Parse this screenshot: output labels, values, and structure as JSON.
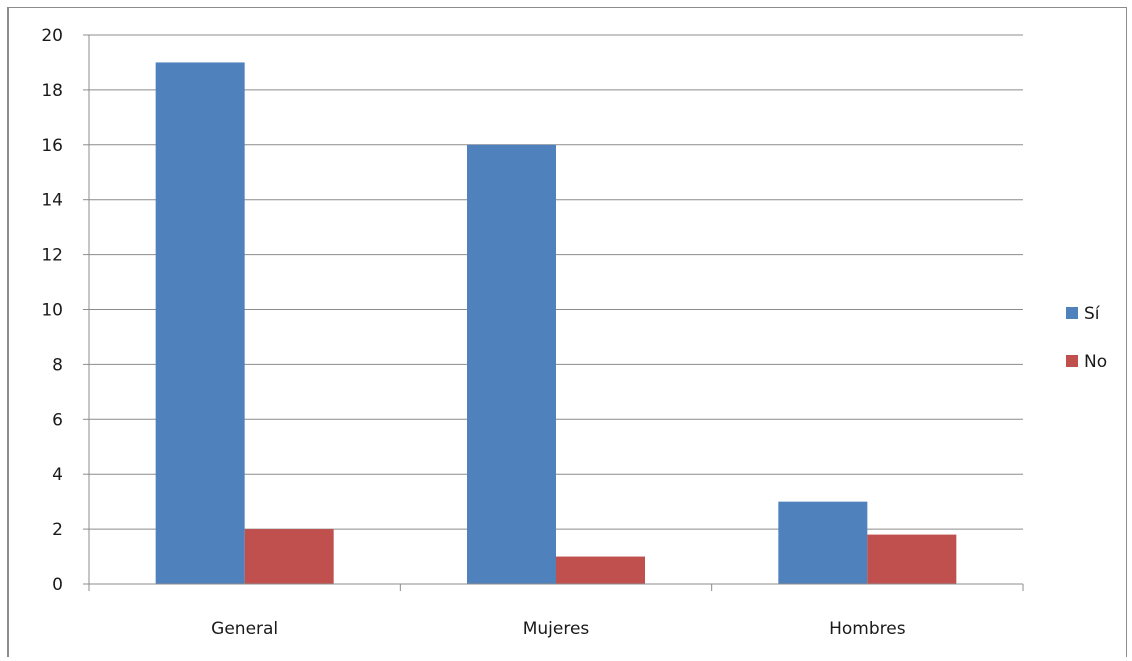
{
  "caption": "",
  "chart_data": {
    "type": "bar",
    "title": "",
    "xlabel": "",
    "ylabel": "",
    "categories": [
      "General",
      "Mujeres",
      "Hombres"
    ],
    "series": [
      {
        "name": "Sí",
        "values": [
          19,
          16,
          3
        ],
        "color": "#4f81bd"
      },
      {
        "name": "No",
        "values": [
          2,
          1,
          1.8
        ],
        "color": "#c0504d"
      }
    ],
    "ylim": [
      0,
      20
    ],
    "yticks": [
      0,
      2,
      4,
      6,
      8,
      10,
      12,
      14,
      16,
      18,
      20
    ],
    "grid": true,
    "legend": "right"
  }
}
